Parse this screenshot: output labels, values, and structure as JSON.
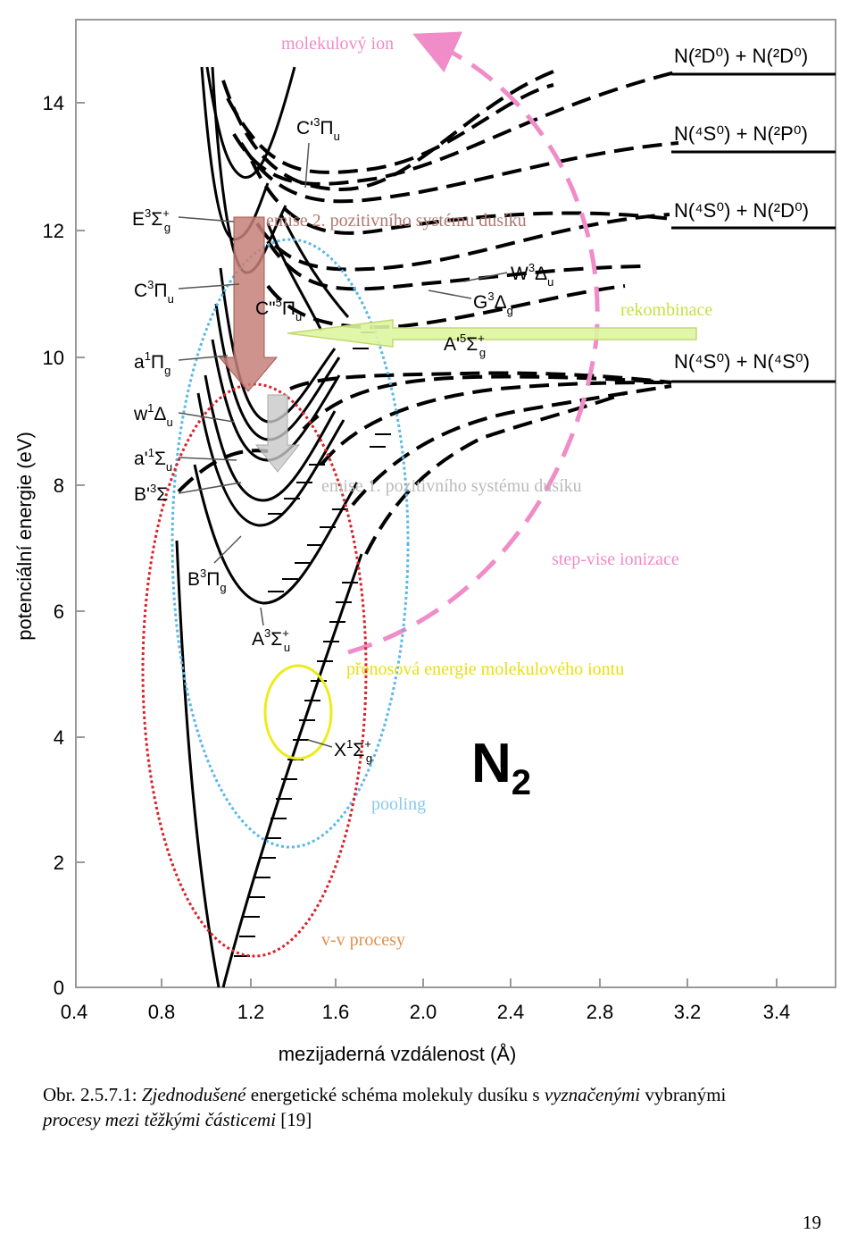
{
  "figure": {
    "xlabel": "mezijaderná vzdálenost (Å)",
    "ylabel": "potenciální energie (eV)",
    "x_ticks": [
      "0.4",
      "0.8",
      "1.2",
      "1.6",
      "2.0",
      "2.4",
      "2.8",
      "3.2",
      "3.4"
    ],
    "y_ticks": [
      "0",
      "2",
      "4",
      "6",
      "8",
      "10",
      "12",
      "14"
    ],
    "molecule": "N",
    "molecule_sub": "2",
    "dissociation_limits": [
      {
        "label": "N(²D⁰) + N(²D⁰)",
        "energy": 14.3
      },
      {
        "label": "N(⁴S⁰) + N(²P⁰)",
        "energy": 13.2
      },
      {
        "label": "N(⁴S⁰) + N(²D⁰)",
        "energy": 12.0
      },
      {
        "label": "N(⁴S⁰) + N(⁴S⁰)",
        "energy": 9.6
      }
    ],
    "state_labels": [
      {
        "name": "E",
        "mult": "3",
        "term": "Σ",
        "sup": "+",
        "sub": "g"
      },
      {
        "name": "C",
        "mult": "3",
        "term": "Π",
        "sup": "",
        "sub": "u"
      },
      {
        "name": "a",
        "mult": "1",
        "term": "Π",
        "sup": "",
        "sub": "g"
      },
      {
        "name": "w",
        "mult": "1",
        "term": "Δ",
        "sup": "",
        "sub": "u"
      },
      {
        "name": "a'",
        "mult": "1",
        "term": "Σ",
        "sup": "",
        "sub": "u"
      },
      {
        "name": "B'",
        "mult": "3",
        "term": "Σ",
        "sup": "",
        "sub": ""
      },
      {
        "name": "B",
        "mult": "3",
        "term": "Π",
        "sup": "",
        "sub": "g"
      },
      {
        "name": "A",
        "mult": "3",
        "term": "Σ",
        "sup": "+",
        "sub": "u"
      },
      {
        "name": "X",
        "mult": "1",
        "term": "Σ",
        "sup": "+",
        "sub": "g"
      },
      {
        "name": "C'",
        "mult": "3",
        "term": "Π",
        "sup": "",
        "sub": "u"
      },
      {
        "name": "C\"",
        "mult": "5",
        "term": "Π",
        "sup": "",
        "sub": "u"
      },
      {
        "name": "W",
        "mult": "3",
        "term": "Δ",
        "sup": "",
        "sub": "u"
      },
      {
        "name": "G",
        "mult": "3",
        "term": "Δ",
        "sup": "",
        "sub": "g"
      },
      {
        "name": "A'",
        "mult": "5",
        "term": "Σ",
        "sup": "+",
        "sub": "g"
      }
    ],
    "annotations": {
      "molecular_ion": "molekulový ion",
      "emission_2": "emise 2. pozitivního systému dusíku",
      "emission_1": "emise 1. pozitivního systému dusíku",
      "recombination": "rekombinace",
      "stepwise": "step-vise ionizace",
      "transfer": "přenosová energie molekulového iontu",
      "pooling": "pooling",
      "vv": "v-v procesy"
    },
    "colors": {
      "pink": "#f08cc8",
      "blue": "#5ab8e6",
      "red": "#d8222a",
      "yellow": "#ecec1a",
      "lime": "#ddf5a0",
      "brown_arrow": "#c58078",
      "grey_arrow": "#c8c8c8"
    }
  },
  "caption": {
    "prefix": "Obr. 2.5.7.1: ",
    "italic_1": "Zjednodušené",
    "plain_1": " energetické schéma molekuly dusíku s ",
    "italic_2": "vyznačenými",
    "plain_2": " vybranými",
    "italic_3": "procesy mezi těžkými částicemi",
    "plain_3": " [19]"
  },
  "page_number": "19"
}
